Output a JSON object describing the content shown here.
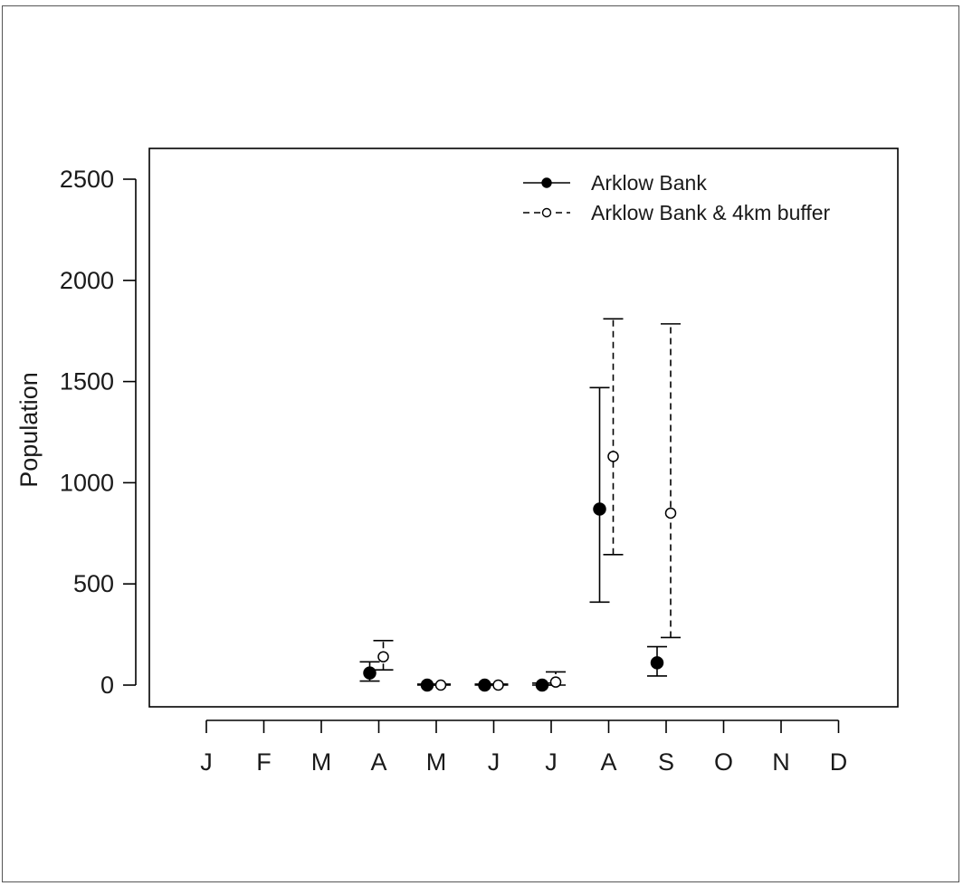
{
  "chart_data": {
    "type": "scatter",
    "xlabel": "",
    "ylabel": "Population",
    "categories": [
      "J",
      "F",
      "M",
      "A",
      "M",
      "J",
      "J",
      "A",
      "S",
      "O",
      "N",
      "D"
    ],
    "ylim": [
      -100,
      2650
    ],
    "yticks": [
      0,
      500,
      1000,
      1500,
      2000,
      2500
    ],
    "legend_position": "top-right",
    "error_bars": true,
    "series": [
      {
        "name": "Arklow Bank",
        "marker": "filled-circle",
        "line_style": "solid",
        "color": "#000000",
        "points": [
          {
            "month_index": 3,
            "y": 60,
            "lower": 20,
            "upper": 115
          },
          {
            "month_index": 4,
            "y": 0,
            "lower": 0,
            "upper": 5
          },
          {
            "month_index": 5,
            "y": 0,
            "lower": 0,
            "upper": 5
          },
          {
            "month_index": 6,
            "y": 0,
            "lower": 0,
            "upper": 10
          },
          {
            "month_index": 7,
            "y": 870,
            "lower": 410,
            "upper": 1470
          },
          {
            "month_index": 8,
            "y": 110,
            "lower": 45,
            "upper": 190
          }
        ]
      },
      {
        "name": "Arklow Bank & 4km buffer",
        "marker": "open-circle",
        "line_style": "dashed",
        "color": "#000000",
        "points": [
          {
            "month_index": 3,
            "y": 140,
            "lower": 75,
            "upper": 220
          },
          {
            "month_index": 4,
            "y": 0,
            "lower": 0,
            "upper": 5
          },
          {
            "month_index": 5,
            "y": 0,
            "lower": 0,
            "upper": 5
          },
          {
            "month_index": 6,
            "y": 15,
            "lower": 0,
            "upper": 65
          },
          {
            "month_index": 7,
            "y": 1130,
            "lower": 645,
            "upper": 1810
          },
          {
            "month_index": 8,
            "y": 850,
            "lower": 235,
            "upper": 1785
          }
        ]
      }
    ]
  }
}
